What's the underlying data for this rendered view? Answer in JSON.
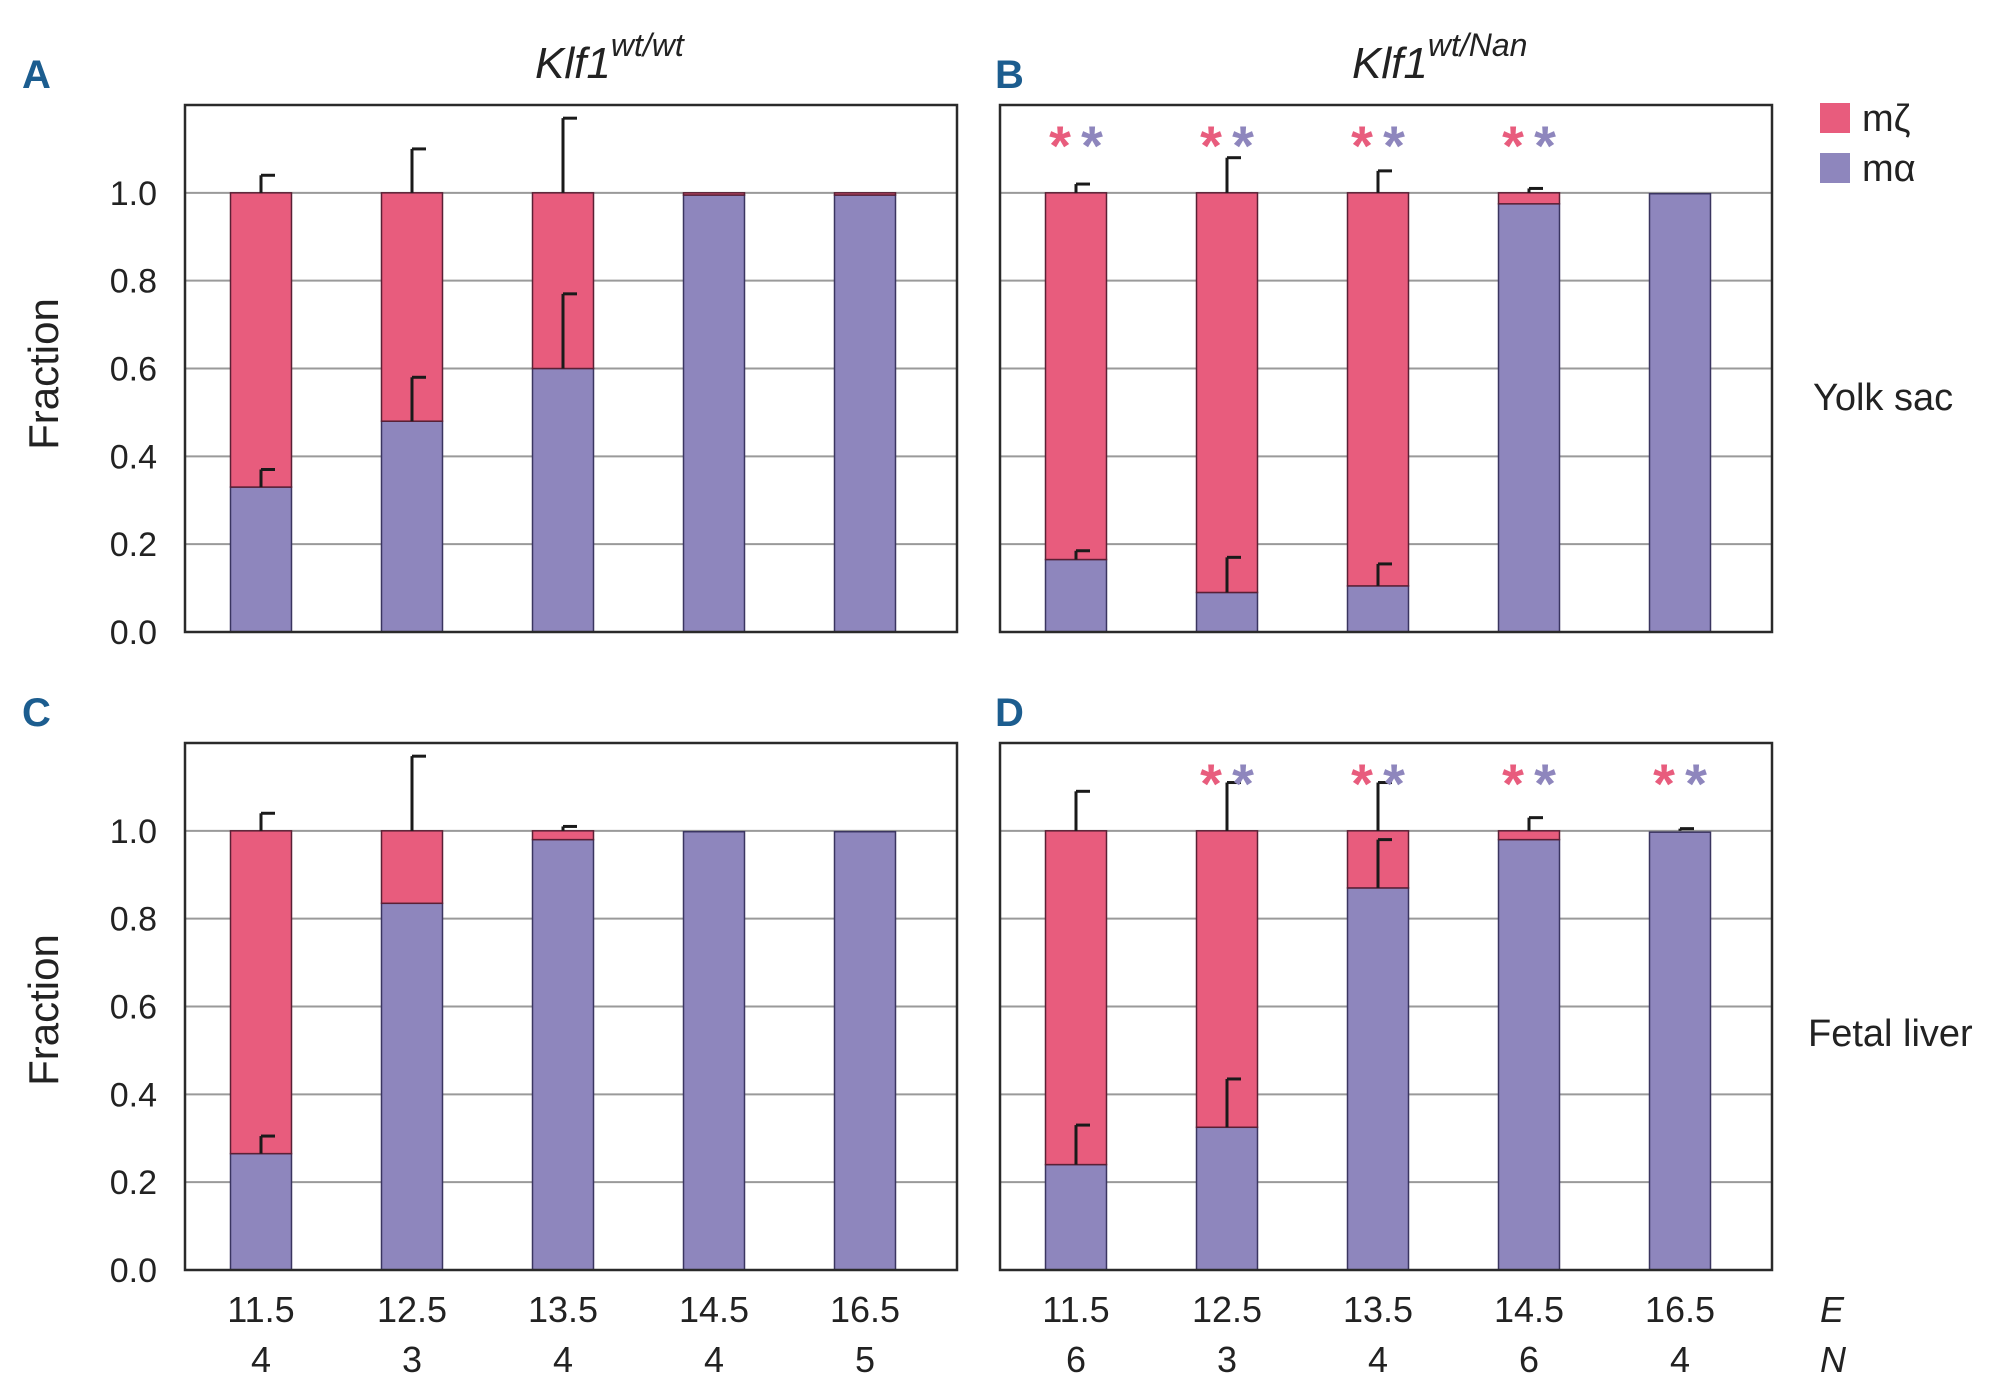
{
  "colors": {
    "m_zeta": "#e85c7d",
    "m_alpha": "#8e86bd",
    "frame": "#2a2a2a",
    "grid": "#9a9a9a",
    "letter": "#1c5d8f"
  },
  "titles": {
    "left_base": "Klf1",
    "left_sup": "wt/wt",
    "right_base": "Klf1",
    "right_sup": "wt/Nan"
  },
  "legend": {
    "zeta": "mζ",
    "alpha": "mα"
  },
  "row_labels": {
    "top": "Yolk sac",
    "bottom": "Fetal liver"
  },
  "ylabel": "Fraction",
  "x_axis_labels": {
    "e": "E",
    "n": "N"
  },
  "star": "*",
  "chart_data": [
    {
      "panel": "A",
      "type": "bar",
      "stacked": true,
      "tissue": "Yolk sac",
      "genotype": "Klf1 wt/wt",
      "categories": [
        "11.5",
        "12.5",
        "13.5",
        "14.5",
        "16.5"
      ],
      "n": [
        "4",
        "3",
        "4",
        "4",
        "5"
      ],
      "series": [
        {
          "name": "mα",
          "values": [
            0.33,
            0.48,
            0.6,
            0.995,
            0.995
          ],
          "err": [
            0.04,
            0.1,
            0.17,
            0,
            0
          ]
        },
        {
          "name": "mζ",
          "values": [
            0.67,
            0.52,
            0.4,
            0.005,
            0.005
          ],
          "err_top": [
            1.04,
            1.1,
            1.17,
            0,
            0
          ]
        }
      ],
      "significant": [
        false,
        false,
        false,
        false,
        false
      ],
      "ylim": [
        0,
        1.2
      ],
      "yticks": [
        "0.0",
        "0.2",
        "0.4",
        "0.6",
        "0.8",
        "1.0"
      ],
      "ylabel": "Fraction"
    },
    {
      "panel": "B",
      "type": "bar",
      "stacked": true,
      "tissue": "Yolk sac",
      "genotype": "Klf1 wt/Nan",
      "categories": [
        "11.5",
        "12.5",
        "13.5",
        "14.5",
        "16.5"
      ],
      "n": [
        "6",
        "3",
        "4",
        "6",
        "4"
      ],
      "series": [
        {
          "name": "mα",
          "values": [
            0.165,
            0.09,
            0.105,
            0.975,
            0.998
          ],
          "err": [
            0.02,
            0.08,
            0.05,
            0,
            0
          ]
        },
        {
          "name": "mζ",
          "values": [
            0.835,
            0.91,
            0.895,
            0.025,
            0.002
          ],
          "err_top": [
            1.02,
            1.08,
            1.05,
            1.01,
            0
          ]
        }
      ],
      "significant": [
        true,
        true,
        true,
        true,
        false
      ],
      "ylim": [
        0,
        1.2
      ],
      "yticks": [
        "0.0",
        "0.2",
        "0.4",
        "0.6",
        "0.8",
        "1.0"
      ]
    },
    {
      "panel": "C",
      "type": "bar",
      "stacked": true,
      "tissue": "Fetal liver",
      "genotype": "Klf1 wt/wt",
      "categories": [
        "11.5",
        "12.5",
        "13.5",
        "14.5",
        "16.5"
      ],
      "n": [
        "4",
        "3",
        "4",
        "4",
        "5"
      ],
      "series": [
        {
          "name": "mα",
          "values": [
            0.265,
            0.835,
            0.98,
            0.998,
            0.998
          ],
          "err": [
            0.04,
            0,
            0,
            0,
            0
          ]
        },
        {
          "name": "mζ",
          "values": [
            0.735,
            0.165,
            0.02,
            0.002,
            0.002
          ],
          "err_top": [
            1.04,
            1.17,
            1.01,
            0,
            0
          ]
        }
      ],
      "significant": [
        false,
        false,
        false,
        false,
        false
      ],
      "ylim": [
        0,
        1.2
      ],
      "yticks": [
        "0.0",
        "0.2",
        "0.4",
        "0.6",
        "0.8",
        "1.0"
      ],
      "ylabel": "Fraction"
    },
    {
      "panel": "D",
      "type": "bar",
      "stacked": true,
      "tissue": "Fetal liver",
      "genotype": "Klf1 wt/Nan",
      "categories": [
        "11.5",
        "12.5",
        "13.5",
        "14.5",
        "16.5"
      ],
      "n": [
        "6",
        "3",
        "4",
        "6",
        "4"
      ],
      "series": [
        {
          "name": "mα",
          "values": [
            0.24,
            0.325,
            0.87,
            0.98,
            0.997
          ],
          "err": [
            0.09,
            0.11,
            0.11,
            0,
            0
          ]
        },
        {
          "name": "mζ",
          "values": [
            0.76,
            0.675,
            0.13,
            0.02,
            0.003
          ],
          "err_top": [
            1.09,
            1.11,
            1.11,
            1.03,
            1.005
          ]
        }
      ],
      "significant": [
        false,
        true,
        true,
        true,
        true
      ],
      "ylim": [
        0,
        1.2
      ],
      "yticks": [
        "0.0",
        "0.2",
        "0.4",
        "0.6",
        "0.8",
        "1.0"
      ]
    }
  ]
}
